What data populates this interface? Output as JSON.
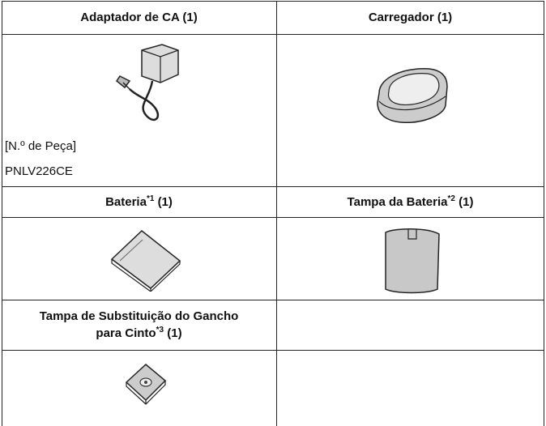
{
  "table": {
    "rows": [
      {
        "cells": [
          {
            "text": "Adaptador de CA (1)"
          },
          {
            "text": "Carregador (1)"
          }
        ]
      },
      {
        "cells": [
          {
            "lines": [
              "[N.º de Peça]",
              "PNLV226CE"
            ]
          },
          {}
        ]
      },
      {
        "cells": [
          {
            "text": "Bateria",
            "note": "*1",
            "qty": "(1)"
          },
          {
            "text": "Tampa da Bateria",
            "note": "*2",
            "qty": "(1)"
          }
        ]
      },
      {
        "cells": [
          {},
          {}
        ]
      },
      {
        "cells": [
          {
            "lines": [
              "Tampa de Substituição do Gancho",
              "para Cinto"
            ],
            "note": "*3",
            "qty": "(1)"
          },
          {}
        ]
      },
      {
        "cells": [
          {},
          {}
        ]
      }
    ]
  }
}
